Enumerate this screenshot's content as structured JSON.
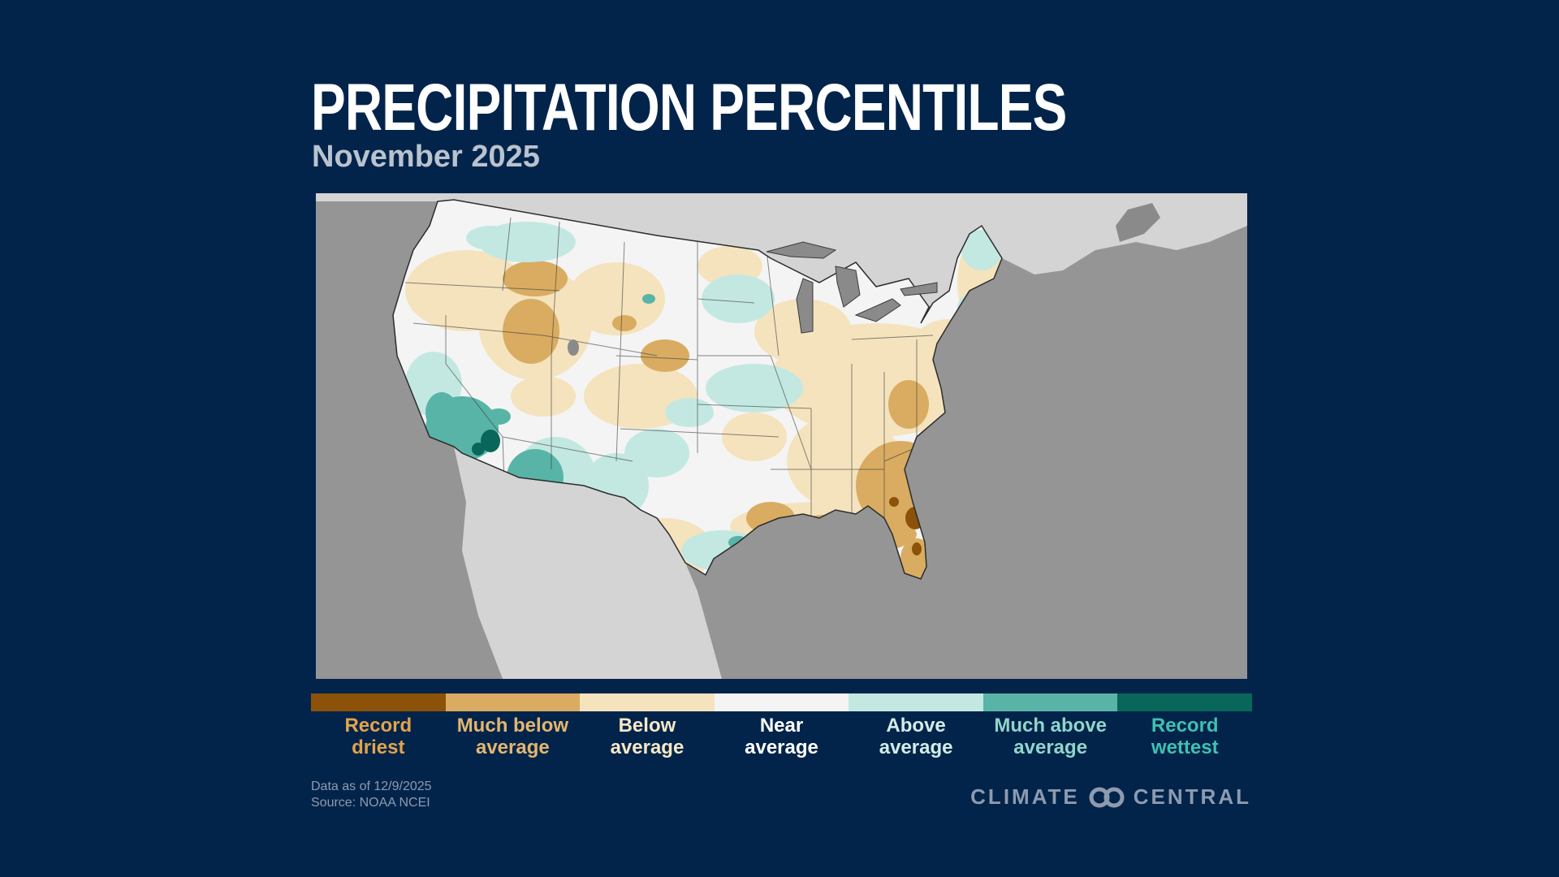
{
  "header": {
    "title": "PRECIPITATION PERCENTILES",
    "subtitle": "November 2025"
  },
  "map": {
    "region": "Contiguous United States",
    "colors": {
      "ocean": "#959595",
      "land_outside": "#d4d4d4",
      "lakes": "#8a8a8a",
      "border": "#3a3a3a"
    }
  },
  "legend": {
    "items": [
      {
        "label_line1": "Record",
        "label_line2": "driest",
        "color": "#8c5209",
        "text_color": "#e3a34b"
      },
      {
        "label_line1": "Much below",
        "label_line2": "average",
        "color": "#d9ac62",
        "text_color": "#e3b66f"
      },
      {
        "label_line1": "Below",
        "label_line2": "average",
        "color": "#f4e3bd",
        "text_color": "#f6e8c7"
      },
      {
        "label_line1": "Near",
        "label_line2": "average",
        "color": "#f4f4f4",
        "text_color": "#ffffff"
      },
      {
        "label_line1": "Above",
        "label_line2": "average",
        "color": "#c3e8e2",
        "text_color": "#d2ede8"
      },
      {
        "label_line1": "Much above",
        "label_line2": "average",
        "color": "#58b4a6",
        "text_color": "#8fd6cc"
      },
      {
        "label_line1": "Record",
        "label_line2": "wettest",
        "color": "#08665a",
        "text_color": "#3fc1b1"
      }
    ]
  },
  "footer": {
    "data_as_of": "Data as of 12/9/2025",
    "source": "Source: NOAA NCEI",
    "brand_left": "CLIMATE",
    "brand_right": "CENTRAL"
  }
}
